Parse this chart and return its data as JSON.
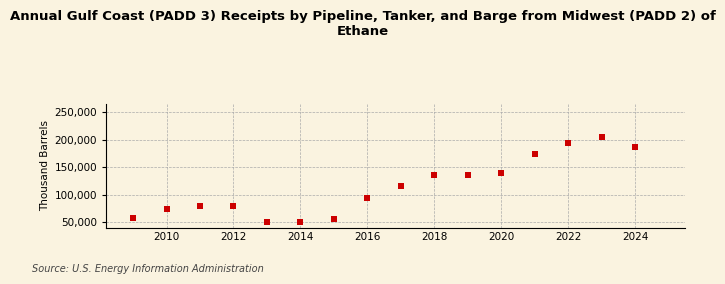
{
  "title": "Annual Gulf Coast (PADD 3) Receipts by Pipeline, Tanker, and Barge from Midwest (PADD 2) of\nEthane",
  "ylabel": "Thousand Barrels",
  "source": "Source: U.S. Energy Information Administration",
  "years": [
    2009,
    2010,
    2011,
    2012,
    2013,
    2014,
    2015,
    2016,
    2017,
    2018,
    2019,
    2020,
    2021,
    2022,
    2023,
    2024
  ],
  "values": [
    57000,
    73000,
    79000,
    80000,
    50000,
    51000,
    55000,
    93000,
    115000,
    135000,
    135000,
    140000,
    173000,
    194000,
    204000,
    187000
  ],
  "marker_color": "#cc0000",
  "marker_size": 5,
  "background_color": "#faf3e0",
  "grid_color": "#aaaaaa",
  "ylim": [
    40000,
    265000
  ],
  "yticks": [
    50000,
    100000,
    150000,
    200000,
    250000
  ],
  "xticks": [
    2010,
    2012,
    2014,
    2016,
    2018,
    2020,
    2022,
    2024
  ],
  "xlim": [
    2008.2,
    2025.5
  ],
  "title_fontsize": 9.5,
  "axis_fontsize": 7.5,
  "source_fontsize": 7
}
